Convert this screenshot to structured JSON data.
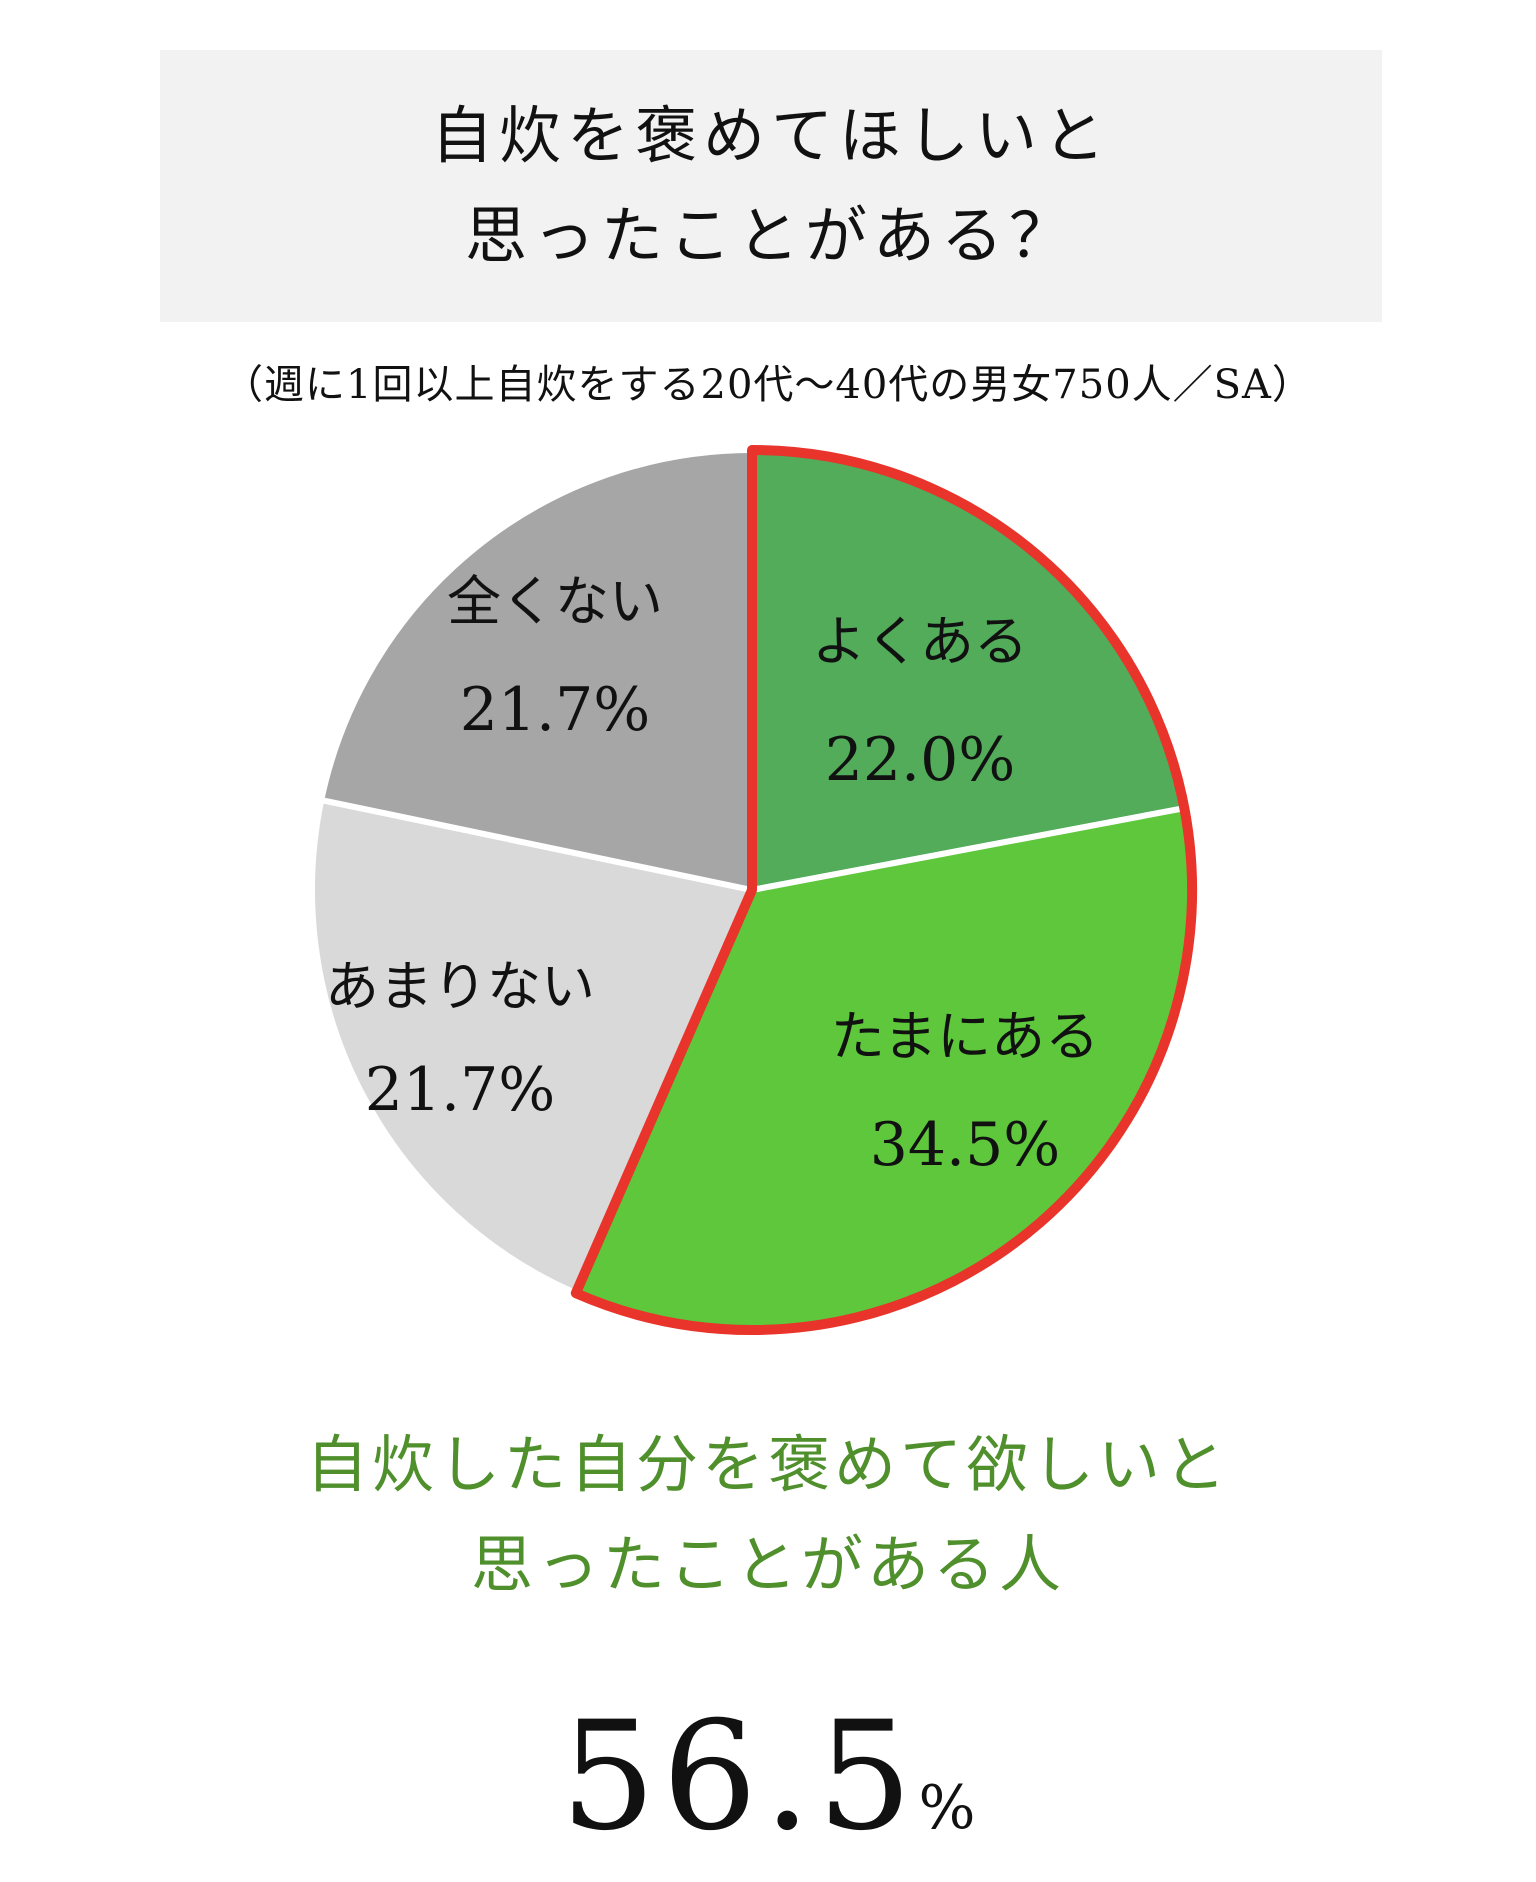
{
  "title": {
    "line1": "自炊を褒めてほしいと",
    "line2": "思ったことがある？"
  },
  "subtitle": "（週に1回以上自炊をする20代〜40代の男女750人／SA）",
  "chart_data": {
    "type": "pie",
    "slices": [
      {
        "label": "よくある",
        "value": 22.0,
        "value_text": "22.0%",
        "color": "#52ac5a"
      },
      {
        "label": "たまにある",
        "value": 34.5,
        "value_text": "34.5%",
        "color": "#5ec73c"
      },
      {
        "label": "あまりない",
        "value": 21.7,
        "value_text": "21.7%",
        "color": "#d9d9d9"
      },
      {
        "label": "全くない",
        "value": 21.7,
        "value_text": "21.7%",
        "color": "#a6a6a6"
      }
    ],
    "start": "12 o'clock",
    "direction": "clockwise",
    "highlight": {
      "slices": [
        "よくある",
        "たまにある"
      ],
      "outline_color": "#e8342a"
    }
  },
  "summary": {
    "line1": "自炊した自分を褒めて欲しいと",
    "line2": "思ったことがある人",
    "value": "56.5",
    "unit": "%"
  }
}
